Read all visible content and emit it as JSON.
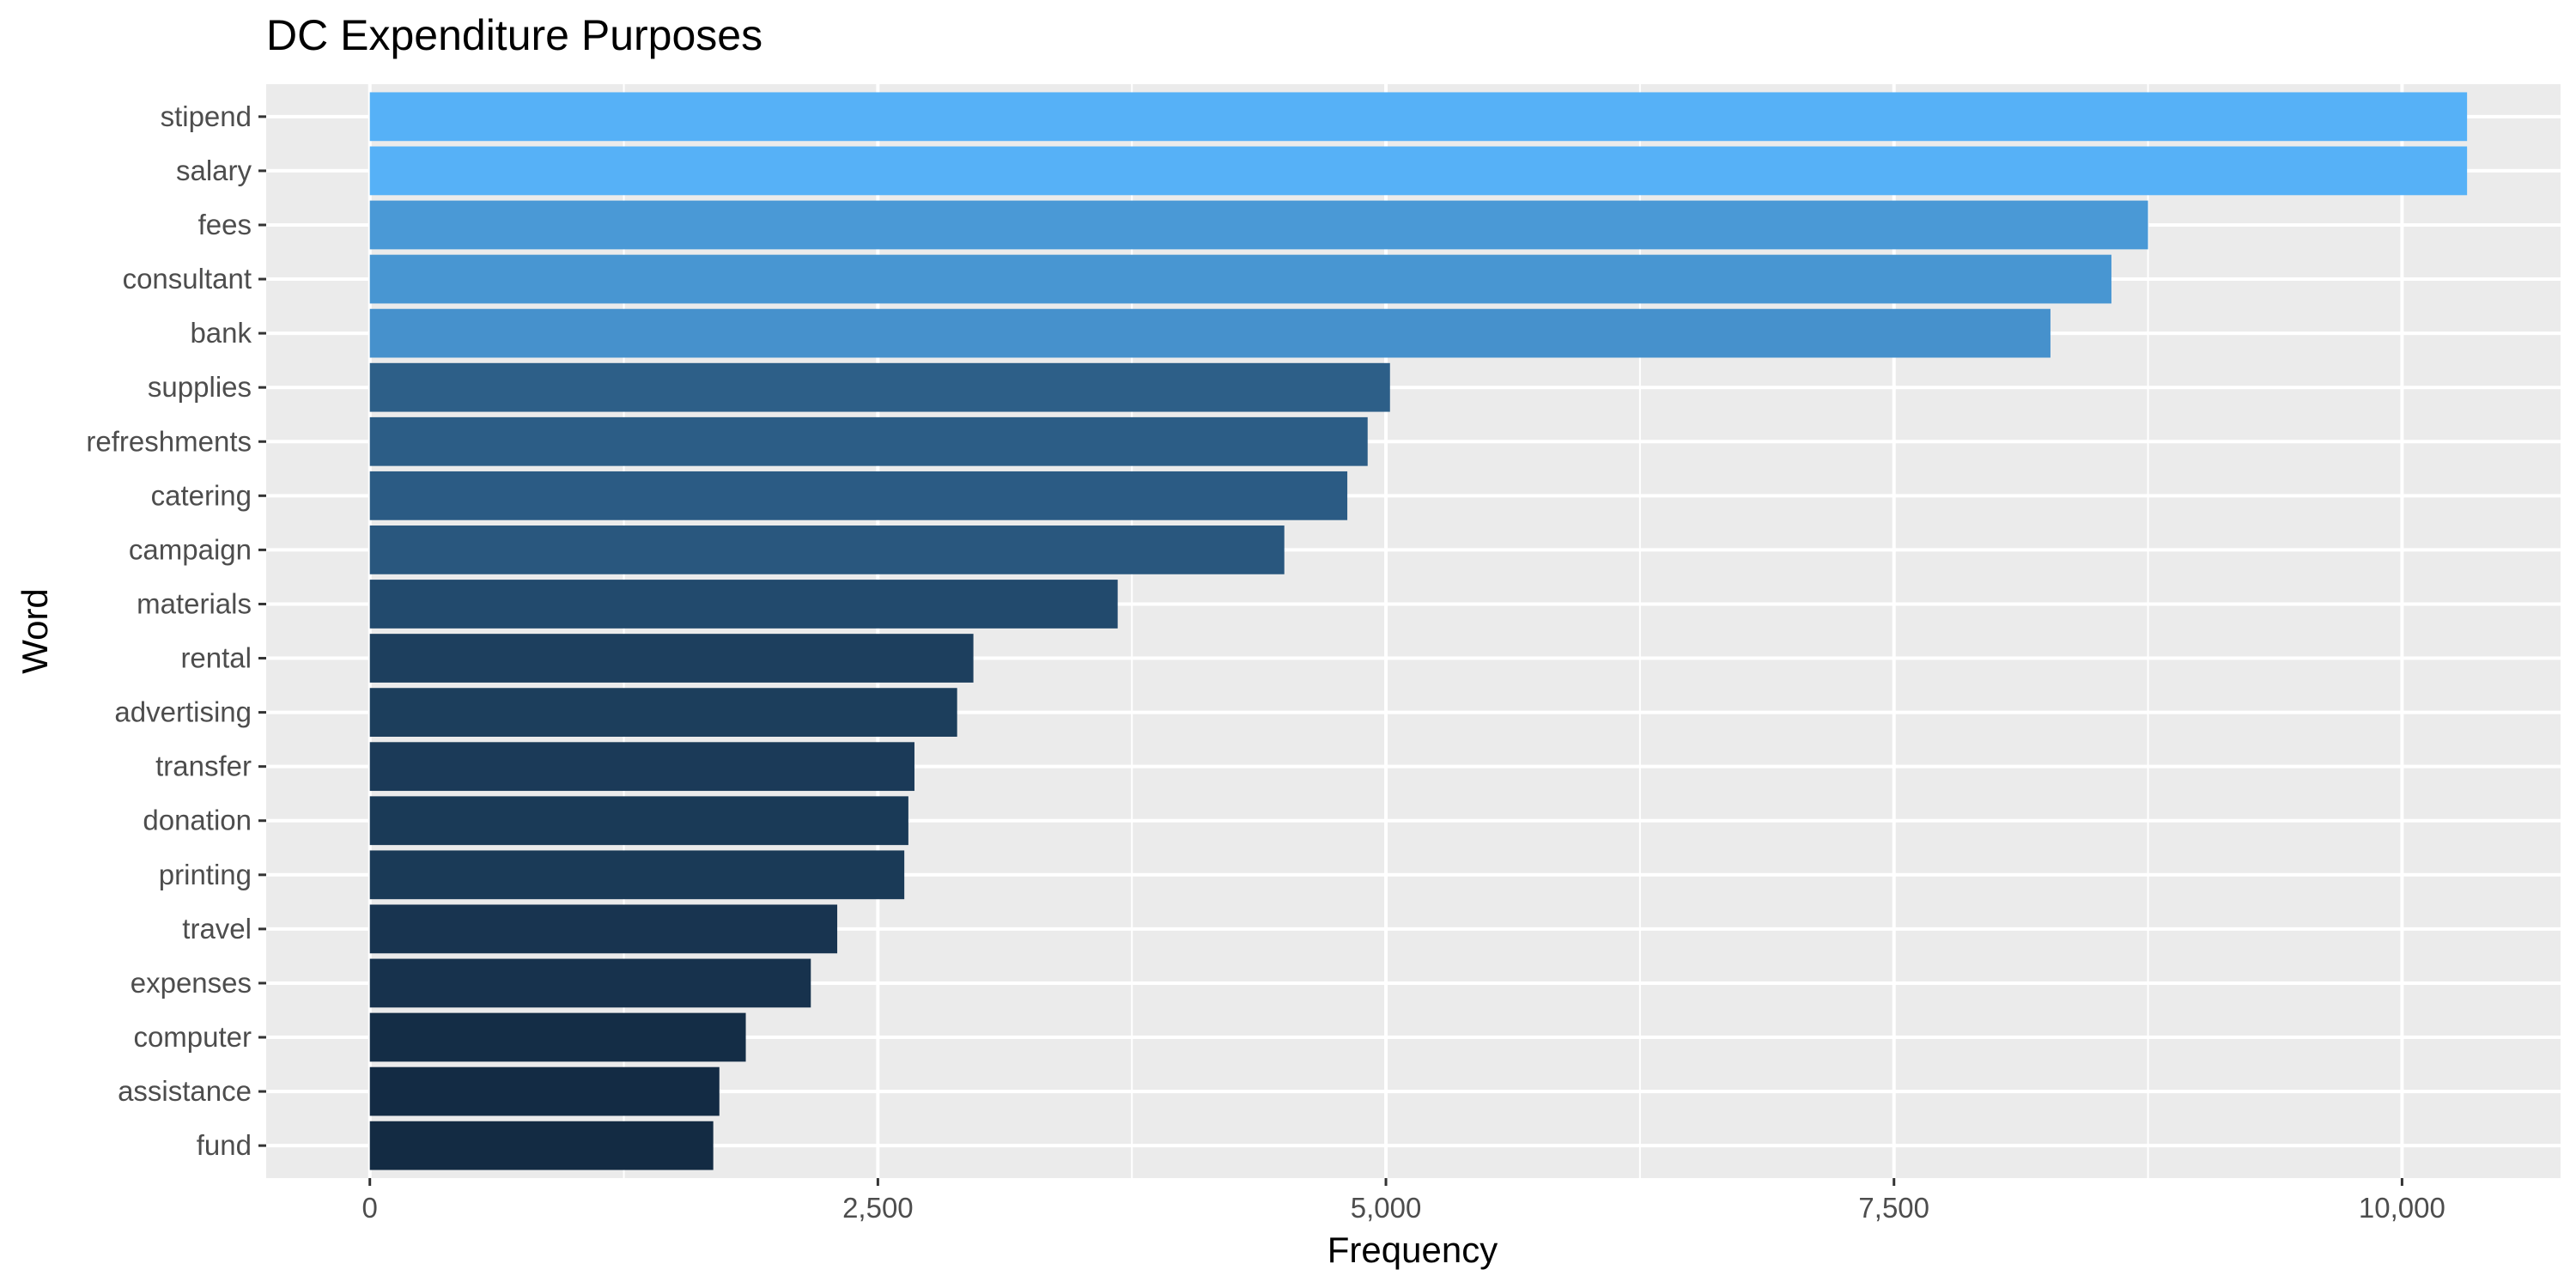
{
  "chart_data": {
    "type": "bar",
    "orientation": "horizontal",
    "title": "DC Expenditure Purposes",
    "xlabel": "Frequency",
    "ylabel": "Word",
    "categories": [
      "stipend",
      "salary",
      "fees",
      "consultant",
      "bank",
      "supplies",
      "refreshments",
      "catering",
      "campaign",
      "materials",
      "rental",
      "advertising",
      "transfer",
      "donation",
      "printing",
      "travel",
      "expenses",
      "computer",
      "assistance",
      "fund"
    ],
    "values": [
      10320,
      10320,
      8750,
      8570,
      8270,
      5020,
      4910,
      4810,
      4500,
      3680,
      2970,
      2890,
      2680,
      2650,
      2630,
      2300,
      2170,
      1850,
      1720,
      1690
    ],
    "xlim": [
      -510,
      10780
    ],
    "xticks": [
      0,
      2500,
      5000,
      7500,
      10000
    ],
    "xtick_labels": [
      "0",
      "2,500",
      "5,000",
      "7,500",
      "10,000"
    ],
    "grid": true,
    "legend": "none",
    "color_gradient": {
      "low": "#132b43",
      "high": "#56b1f7"
    }
  }
}
